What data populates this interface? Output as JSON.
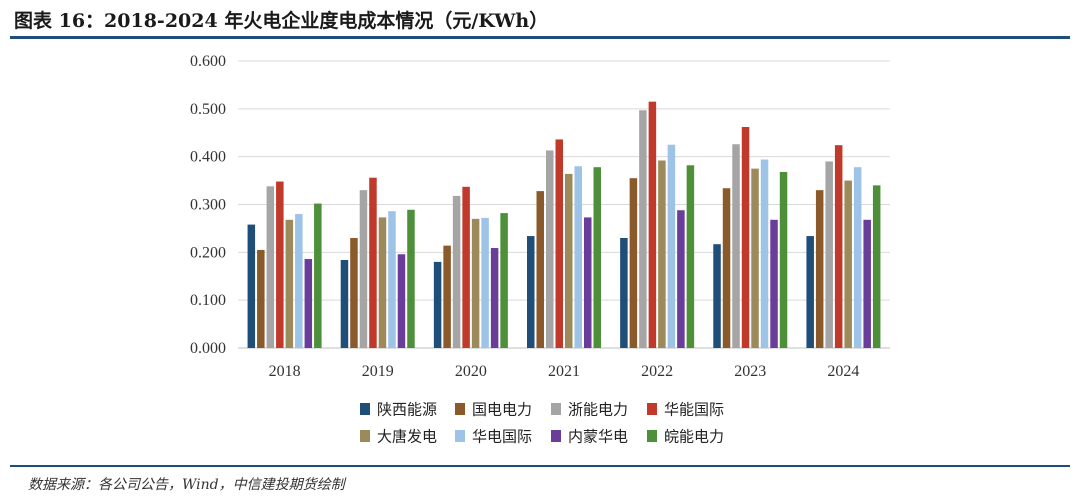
{
  "header": {
    "title": "图表 16：2018-2024 年火电企业度电成本情况（元/KWh）"
  },
  "footer": {
    "source": "数据来源：各公司公告，Wind，中信建投期货绘制"
  },
  "chart_data": {
    "type": "bar",
    "title": "",
    "xlabel": "",
    "ylabel": "",
    "ylim": [
      0,
      0.6
    ],
    "yticks": [
      "0.000",
      "0.100",
      "0.200",
      "0.300",
      "0.400",
      "0.500",
      "0.600"
    ],
    "grid": true,
    "legend_position": "bottom",
    "categories": [
      "2018",
      "2019",
      "2020",
      "2021",
      "2022",
      "2023",
      "2024"
    ],
    "series": [
      {
        "name": "陕西能源",
        "color": "#1f4e79",
        "values": [
          0.258,
          0.184,
          0.18,
          0.234,
          0.23,
          0.217,
          0.234
        ]
      },
      {
        "name": "国电电力",
        "color": "#8b5a2b",
        "values": [
          0.205,
          0.23,
          0.214,
          0.328,
          0.355,
          0.334,
          0.33
        ]
      },
      {
        "name": "浙能电力",
        "color": "#a5a5a5",
        "values": [
          0.338,
          0.33,
          0.318,
          0.413,
          0.497,
          0.426,
          0.39
        ]
      },
      {
        "name": "华能国际",
        "color": "#c0392b",
        "values": [
          0.348,
          0.356,
          0.337,
          0.436,
          0.515,
          0.462,
          0.424
        ]
      },
      {
        "name": "大唐发电",
        "color": "#9c8a5a",
        "values": [
          0.268,
          0.273,
          0.27,
          0.364,
          0.392,
          0.375,
          0.35
        ]
      },
      {
        "name": "华电国际",
        "color": "#9dc3e6",
        "values": [
          0.28,
          0.286,
          0.272,
          0.38,
          0.425,
          0.394,
          0.378
        ]
      },
      {
        "name": "内蒙华电",
        "color": "#6a3d9a",
        "values": [
          0.186,
          0.196,
          0.209,
          0.273,
          0.288,
          0.268,
          0.268
        ]
      },
      {
        "name": "皖能电力",
        "color": "#4e8f3a",
        "values": [
          0.302,
          0.289,
          0.282,
          0.378,
          0.382,
          0.368,
          0.34
        ]
      }
    ]
  }
}
